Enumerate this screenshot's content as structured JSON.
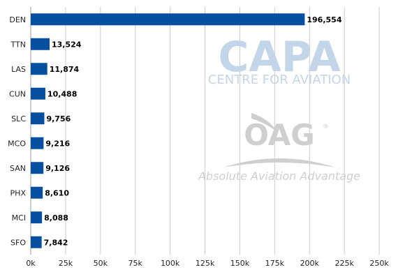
{
  "chart_data": {
    "type": "bar",
    "orientation": "horizontal",
    "categories": [
      "DEN",
      "TTN",
      "LAS",
      "CUN",
      "SLC",
      "MCO",
      "SAN",
      "PHX",
      "MCI",
      "SFO"
    ],
    "values": [
      196554,
      13524,
      11874,
      10488,
      9756,
      9216,
      9126,
      8610,
      8088,
      7842
    ],
    "value_labels": [
      "196,554",
      "13,524",
      "11,874",
      "10,488",
      "9,756",
      "9,216",
      "9,126",
      "8,610",
      "8,088",
      "7,842"
    ],
    "xlim": [
      0,
      270000
    ],
    "x_ticks": [
      0,
      25000,
      50000,
      75000,
      100000,
      125000,
      150000,
      175000,
      200000,
      225000,
      250000
    ],
    "x_tick_labels": [
      "0k",
      "25k",
      "50k",
      "75k",
      "100k",
      "125k",
      "150k",
      "175k",
      "200k",
      "225k",
      "250k"
    ],
    "grid": true,
    "bar_color": "#0750a0",
    "gridline_color": "#cccccc",
    "title": "",
    "xlabel": "",
    "ylabel": ""
  },
  "watermarks": {
    "capa": {
      "logo_text": "CAPA",
      "subtitle": "CENTRE FOR AVIATION",
      "color": "#c3d6e9"
    },
    "oag": {
      "logo_text": "OAG",
      "registered_mark": "®",
      "tagline": "Absolute Aviation Advantage",
      "color": "#cfcfcf"
    }
  }
}
